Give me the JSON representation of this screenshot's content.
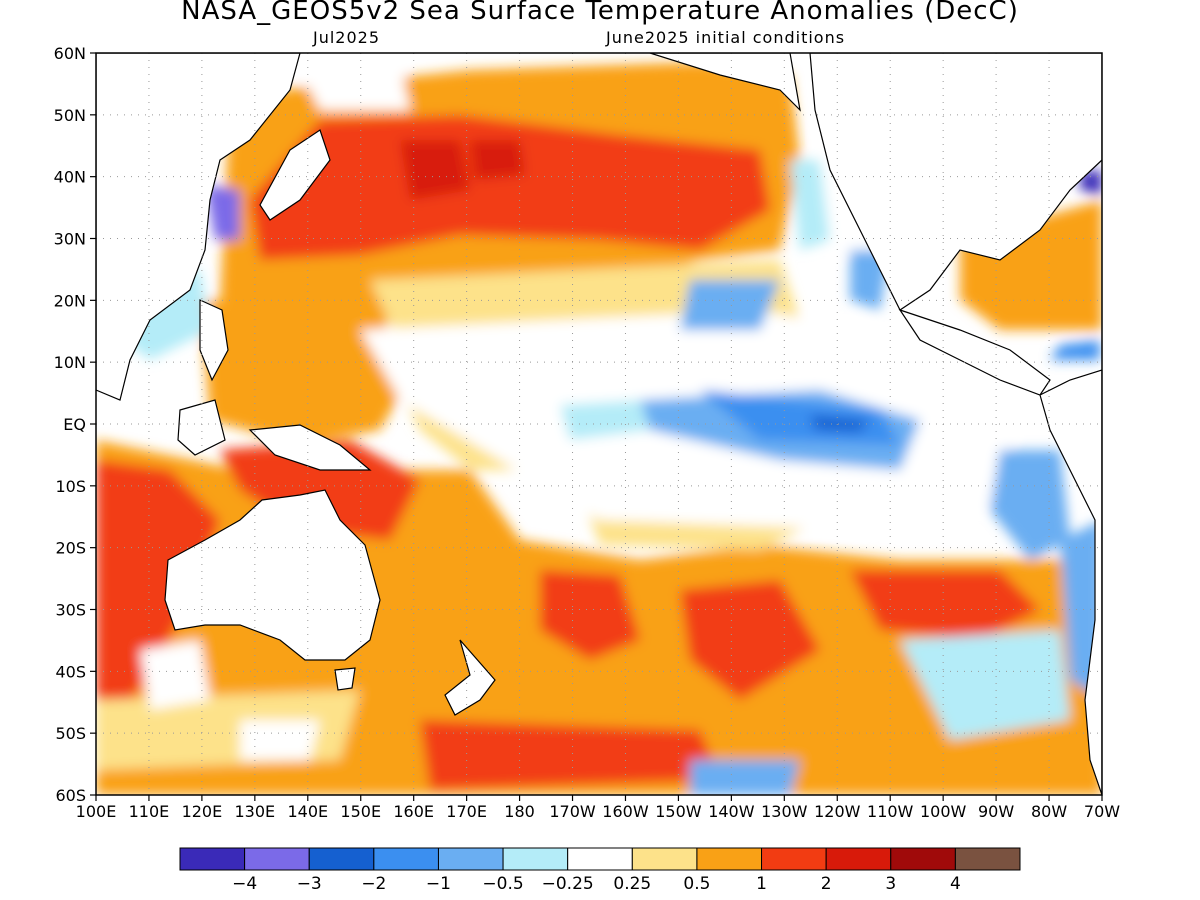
{
  "title": "NASA_GEOS5v2 Sea Surface Temperature Anomalies (DecC)",
  "valid_month": "Jul2025",
  "init_conditions": "June2025 initial conditions",
  "map": {
    "lat_labels": [
      "60N",
      "50N",
      "40N",
      "30N",
      "20N",
      "10N",
      "EQ",
      "10S",
      "20S",
      "30S",
      "40S",
      "50S",
      "60S"
    ],
    "lon_labels": [
      "100E",
      "110E",
      "120E",
      "130E",
      "140E",
      "150E",
      "160E",
      "170E",
      "180",
      "170W",
      "160W",
      "150W",
      "140W",
      "130W",
      "120W",
      "110W",
      "100W",
      "90W",
      "80W",
      "70W"
    ],
    "lon_range": [
      100,
      290
    ],
    "lat_range": [
      -60,
      60
    ],
    "grid_step_deg": 10
  },
  "colorbar": {
    "colors": [
      "#3a2ab8",
      "#7b6ae8",
      "#1560d0",
      "#3b8ff0",
      "#6aaef2",
      "#b4ecf8",
      "#ffffff",
      "#fde28a",
      "#f9a116",
      "#f23c12",
      "#d81a0a",
      "#a00a0a",
      "#7a5240"
    ],
    "labels": [
      "−4",
      "−3",
      "−2",
      "−1",
      "−0.5",
      "−0.25",
      "0.25",
      "0.5",
      "1",
      "2",
      "3",
      "4"
    ]
  }
}
